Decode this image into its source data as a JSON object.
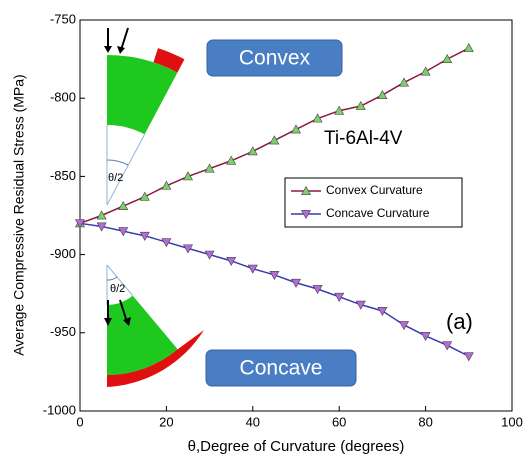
{
  "chart_data": {
    "type": "line",
    "xlabel": "θ,Degree of Curvature (degrees)",
    "ylabel": "Average Compressive Residual Stress (MPa)",
    "x": [
      0,
      5,
      10,
      15,
      20,
      25,
      30,
      35,
      40,
      45,
      50,
      55,
      60,
      65,
      70,
      75,
      80,
      85,
      90
    ],
    "series": [
      {
        "name": "Convex Curvature",
        "color": "#8b1a3a",
        "marker": "triangle-up",
        "marker_color": "#7dcf6a",
        "values": [
          -880,
          -875,
          -869,
          -863,
          -856,
          -850,
          -845,
          -840,
          -834,
          -827,
          -820,
          -813,
          -808,
          -805,
          -798,
          -790,
          -783,
          -775,
          -768
        ]
      },
      {
        "name": "Concave Curvature",
        "color": "#3a3ab0",
        "marker": "triangle-down",
        "marker_color": "#b46ad8",
        "values": [
          -880,
          -882,
          -885,
          -888,
          -892,
          -896,
          -900,
          -904,
          -909,
          -913,
          -918,
          -922,
          -927,
          -932,
          -936,
          -945,
          -952,
          -958,
          -965
        ]
      }
    ],
    "xlim": [
      0,
      100
    ],
    "xticks": [
      0,
      20,
      40,
      60,
      80,
      100
    ],
    "ylim": [
      -1000,
      -750
    ],
    "yticks": [
      -1000,
      -950,
      -900,
      -850,
      -800,
      -750
    ],
    "legend": "center-right",
    "annotations": [
      "Convex",
      "Concave",
      "Ti-6Al-4V",
      "(a)",
      "θ/2",
      "θ/2"
    ]
  }
}
